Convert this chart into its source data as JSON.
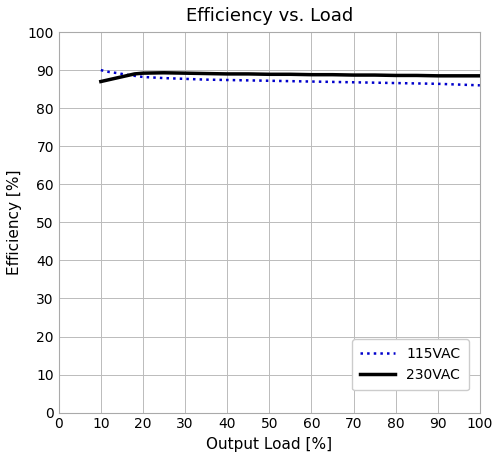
{
  "title": "Efficiency vs. Load",
  "xlabel": "Output Load [%]",
  "ylabel": "Efficiency [%]",
  "xlim": [
    0,
    100
  ],
  "ylim": [
    0,
    100
  ],
  "xticks": [
    0,
    10,
    20,
    30,
    40,
    50,
    60,
    70,
    80,
    90,
    100
  ],
  "yticks": [
    0,
    10,
    20,
    30,
    40,
    50,
    60,
    70,
    80,
    90,
    100
  ],
  "line_115VAC": {
    "x": [
      10,
      12,
      14,
      16,
      18,
      20,
      25,
      30,
      35,
      40,
      45,
      50,
      55,
      60,
      65,
      70,
      75,
      80,
      85,
      90,
      95,
      100
    ],
    "y": [
      90.0,
      89.5,
      89.2,
      88.8,
      88.5,
      88.2,
      87.9,
      87.7,
      87.5,
      87.4,
      87.3,
      87.2,
      87.1,
      87.0,
      86.9,
      86.8,
      86.7,
      86.6,
      86.5,
      86.4,
      86.2,
      86.0
    ],
    "color": "#0000CC",
    "linestyle": "dotted",
    "linewidth": 1.8,
    "label": "115VAC"
  },
  "line_230VAC": {
    "x": [
      10,
      12,
      14,
      16,
      18,
      20,
      25,
      30,
      35,
      40,
      45,
      50,
      55,
      60,
      65,
      70,
      75,
      80,
      85,
      90,
      95,
      100
    ],
    "y": [
      87.0,
      87.5,
      88.0,
      88.5,
      89.0,
      89.2,
      89.3,
      89.2,
      89.1,
      89.0,
      89.0,
      88.9,
      88.9,
      88.8,
      88.8,
      88.7,
      88.7,
      88.6,
      88.6,
      88.5,
      88.5,
      88.5
    ],
    "color": "#000000",
    "linestyle": "solid",
    "linewidth": 2.5,
    "label": "230VAC"
  },
  "grid_color": "#bbbbbb",
  "spine_color": "#aaaaaa",
  "bg_color": "#ffffff",
  "title_fontsize": 13,
  "label_fontsize": 11,
  "tick_fontsize": 10,
  "legend_fontsize": 10,
  "figsize": [
    5.0,
    4.59
  ],
  "dpi": 100
}
